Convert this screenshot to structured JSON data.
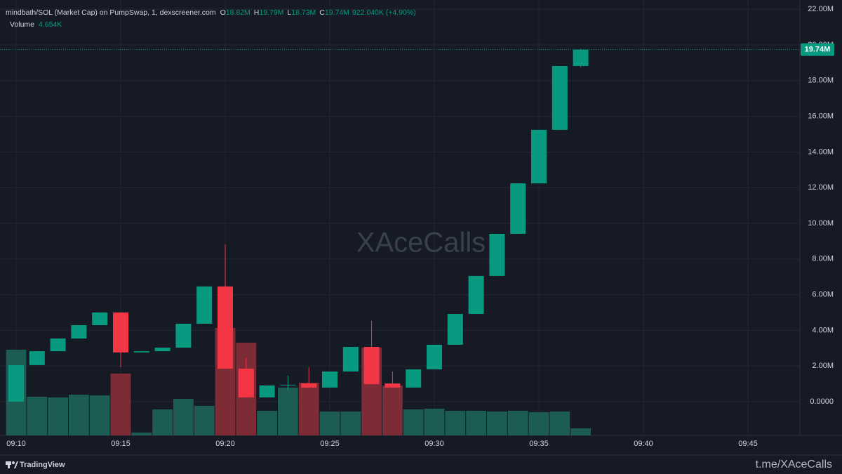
{
  "chart_data": {
    "type": "candlestick",
    "title": "mindbath/SOL (Market Cap) on PumpSwap, 1, dexscreener.com",
    "legend": [
      {
        "key": "O",
        "text": "18.82M"
      },
      {
        "key": "H",
        "text": "19.79M"
      },
      {
        "key": "L",
        "text": "18.73M"
      },
      {
        "key": "C",
        "text": "19.74M"
      }
    ],
    "change": "922.040K (+4.90%)",
    "volume_title": "Volume",
    "volume_text": "4.654K",
    "categories": [
      "09:10",
      null,
      null,
      null,
      null,
      "09:15",
      null,
      null,
      null,
      null,
      "09:20",
      null,
      null,
      null,
      null,
      "09:25",
      null,
      null,
      null,
      null,
      "09:30",
      null,
      null,
      null,
      null,
      "09:35",
      null,
      null,
      null,
      null,
      "09:40",
      null,
      null,
      null,
      null,
      "09:45",
      null,
      null
    ],
    "open": [
      0.0,
      2.05,
      2.83,
      3.54,
      4.29,
      5.0,
      2.76,
      2.83,
      3.03,
      4.37,
      6.46,
      1.85,
      0.24,
      0.91,
      1.02,
      0.79,
      1.69,
      3.07,
      1.02,
      0.79,
      1.81,
      3.19,
      4.92,
      7.05,
      9.41,
      12.24,
      15.24,
      18.82,
      null,
      null,
      null,
      null,
      null,
      null,
      null,
      null,
      null,
      null
    ],
    "high": [
      2.05,
      2.83,
      3.54,
      4.29,
      5.0,
      5.0,
      2.83,
      3.03,
      4.37,
      6.46,
      8.82,
      2.44,
      0.91,
      1.46,
      1.93,
      1.69,
      3.07,
      4.53,
      1.69,
      1.81,
      3.19,
      4.92,
      7.05,
      9.41,
      12.24,
      15.24,
      18.82,
      19.79,
      null,
      null,
      null,
      null,
      null,
      null,
      null,
      null,
      null,
      null
    ],
    "low": [
      0.0,
      2.05,
      2.83,
      3.54,
      4.29,
      1.93,
      2.76,
      2.83,
      3.03,
      4.37,
      1.85,
      0.24,
      0.24,
      0.67,
      0.79,
      0.79,
      1.69,
      0.98,
      0.79,
      0.79,
      1.81,
      3.19,
      4.92,
      7.05,
      9.41,
      12.24,
      15.24,
      18.73,
      null,
      null,
      null,
      null,
      null,
      null,
      null,
      null,
      null,
      null
    ],
    "close": [
      2.05,
      2.83,
      3.54,
      4.29,
      5.0,
      2.76,
      2.83,
      3.03,
      4.37,
      6.46,
      1.85,
      0.24,
      0.91,
      0.95,
      0.79,
      1.69,
      3.07,
      0.98,
      0.79,
      1.81,
      3.19,
      4.92,
      7.05,
      9.41,
      12.24,
      15.24,
      18.82,
      19.74,
      null,
      null,
      null,
      null,
      null,
      null,
      null,
      null,
      null,
      null
    ],
    "volume": [
      56.8,
      25.6,
      25.1,
      27.0,
      26.5,
      41.0,
      1.9,
      17.2,
      24.2,
      19.6,
      71.2,
      61.4,
      16.3,
      31.7,
      34.9,
      15.8,
      15.8,
      58.2,
      33.0,
      17.2,
      17.7,
      16.3,
      16.3,
      15.8,
      16.3,
      15.4,
      15.8,
      4.654,
      null,
      null,
      null,
      null,
      null,
      null,
      null,
      null,
      null,
      null
    ],
    "up_color": "#089981",
    "down_color": "#f23645",
    "up_volume_color": "#1d5c55",
    "down_volume_color": "#7d2c36",
    "ylim": [
      -1.89,
      22.52
    ],
    "yticks": [
      {
        "value": 0,
        "label": "0.0000"
      },
      {
        "value": 2,
        "label": "2.00M"
      },
      {
        "value": 4,
        "label": "4.00M"
      },
      {
        "value": 6,
        "label": "6.00M"
      },
      {
        "value": 8,
        "label": "8.00M"
      },
      {
        "value": 10,
        "label": "10.00M"
      },
      {
        "value": 12,
        "label": "12.00M"
      },
      {
        "value": 14,
        "label": "14.00M"
      },
      {
        "value": 16,
        "label": "16.00M"
      },
      {
        "value": 18,
        "label": "18.00M"
      },
      {
        "value": 20,
        "label": "20.00M"
      },
      {
        "value": 22,
        "label": "22.00M"
      }
    ],
    "price_line": {
      "value": 19.74,
      "label": "19.74M"
    },
    "grid": true,
    "watermark": "XAceCalls",
    "brand": "TradingView",
    "footer": "t.me/XAceCalls"
  }
}
